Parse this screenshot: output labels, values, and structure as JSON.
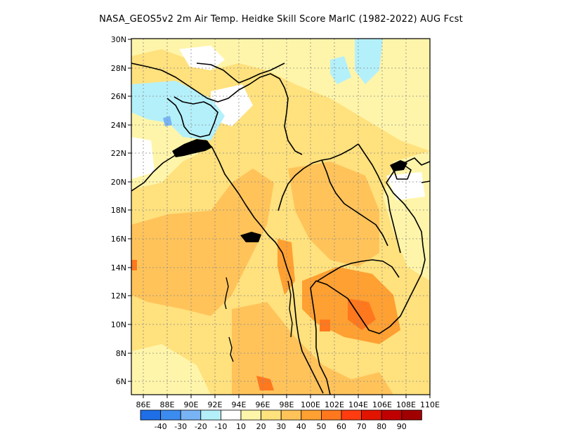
{
  "title": "NASA_GEOS5v2  2m Air Temp. Heidke Skill Score MarIC (1982-2022) AUG Fcst",
  "lat_labels": [
    "30N",
    "28N",
    "26N",
    "24N",
    "22N",
    "20N",
    "18N",
    "16N",
    "14N",
    "12N",
    "10N",
    "8N",
    "6N"
  ],
  "lon_labels": [
    "86E",
    "88E",
    "90E",
    "92E",
    "94E",
    "96E",
    "98E",
    "100E",
    "102E",
    "104E",
    "106E",
    "108E",
    "110E"
  ],
  "colorbar": {
    "labels": [
      "-40",
      "-30",
      "-20",
      "-10",
      "10",
      "20",
      "30",
      "40",
      "50",
      "60",
      "70",
      "80",
      "90"
    ],
    "colors": [
      "#1e6ee6",
      "#3c8cf0",
      "#78b4f5",
      "#b4f0fa",
      "#ffffff",
      "#fff5aa",
      "#ffe17d",
      "#ffc35a",
      "#ffa032",
      "#ff781e",
      "#ff3c0f",
      "#e11400",
      "#c00000",
      "#a00000"
    ]
  },
  "map": {
    "lon_range": [
      85,
      110
    ],
    "lat_range": [
      5,
      30
    ],
    "background_color": "#ffe17d",
    "regions": [
      {
        "name": "north-light-yellow",
        "color": "#fff5aa"
      },
      {
        "name": "nw-blue",
        "color": "#b4f0fa"
      },
      {
        "name": "ne-blue",
        "color": "#b4f0fa"
      },
      {
        "name": "west-orange",
        "color": "#ffc35a"
      },
      {
        "name": "south-orange",
        "color": "#ffc35a"
      },
      {
        "name": "cambodia-deep",
        "color": "#ffa032"
      },
      {
        "name": "mekong-red",
        "color": "#ff781e"
      },
      {
        "name": "east-yellow",
        "color": "#fff5aa"
      }
    ]
  }
}
